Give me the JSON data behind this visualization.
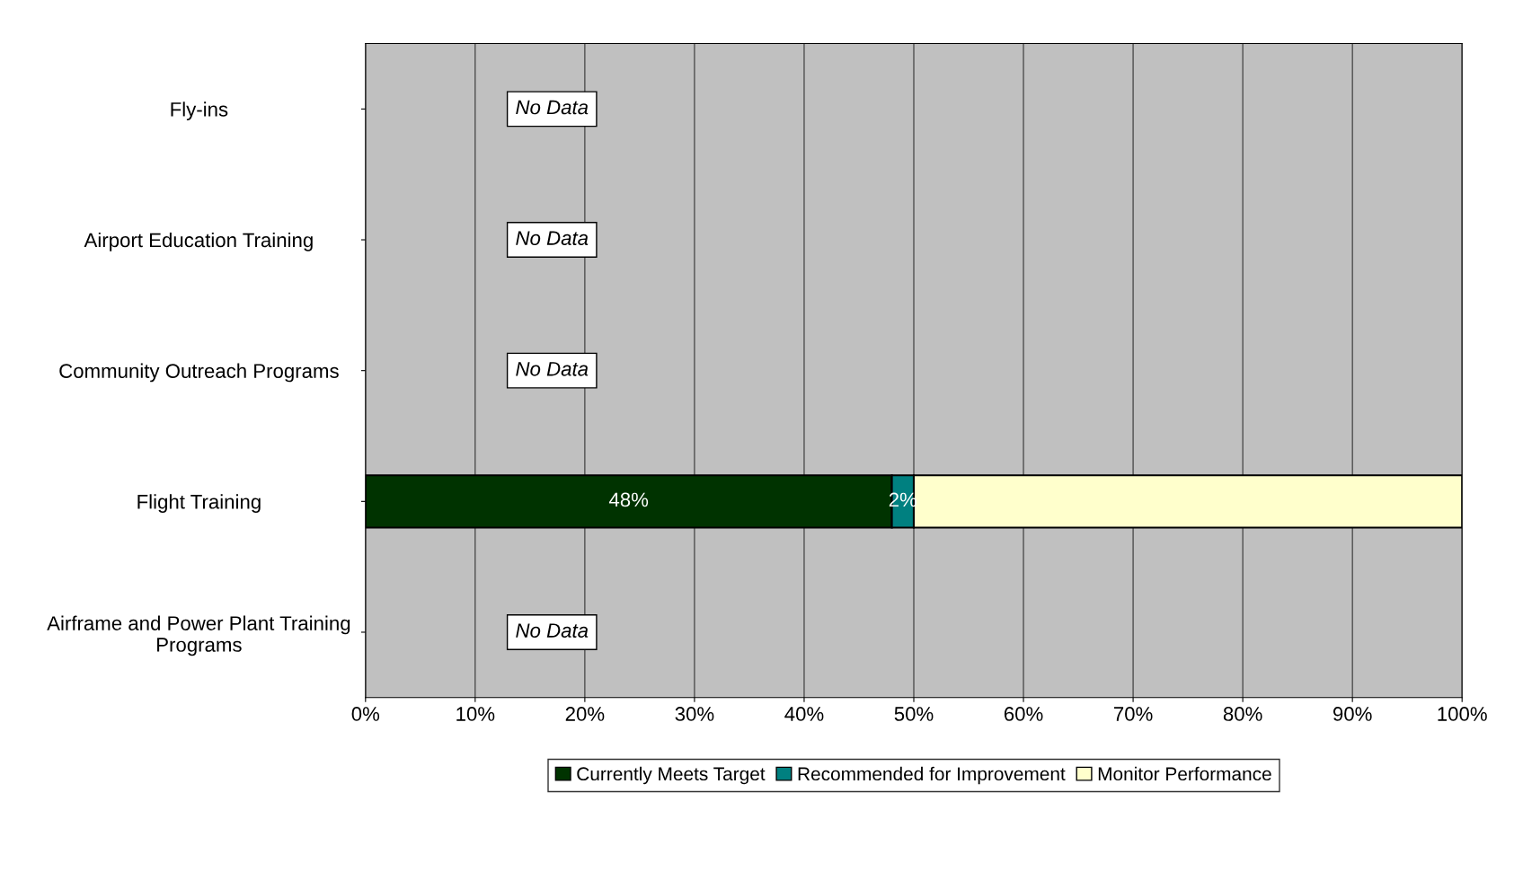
{
  "chart_data": {
    "type": "bar",
    "orientation": "horizontal",
    "stacked": true,
    "categories": [
      "Fly-ins",
      "Airport Education Training",
      "Community Outreach Programs",
      "Flight Training",
      "Airframe and Power Plant Training\nPrograms"
    ],
    "series": [
      {
        "name": "Currently Meets Target",
        "color": "#003300",
        "values": [
          null,
          null,
          null,
          48,
          null
        ],
        "value_labels": [
          null,
          null,
          null,
          "48%",
          null
        ]
      },
      {
        "name": "Recommended for Improvement",
        "color": "#008080",
        "values": [
          null,
          null,
          null,
          2,
          null
        ],
        "value_labels": [
          null,
          null,
          null,
          "2%",
          null
        ]
      },
      {
        "name": "Monitor Performance",
        "color": "#ffffcc",
        "values": [
          null,
          null,
          null,
          50,
          null
        ]
      }
    ],
    "xlim": [
      0,
      100
    ],
    "xticks": [
      {
        "value": 0,
        "label": "0%"
      },
      {
        "value": 10,
        "label": "10%"
      },
      {
        "value": 20,
        "label": "20%"
      },
      {
        "value": 30,
        "label": "30%"
      },
      {
        "value": 40,
        "label": "40%"
      },
      {
        "value": 50,
        "label": "50%"
      },
      {
        "value": 60,
        "label": "60%"
      },
      {
        "value": 70,
        "label": "70%"
      },
      {
        "value": 80,
        "label": "80%"
      },
      {
        "value": 90,
        "label": "90%"
      },
      {
        "value": 100,
        "label": "100%"
      }
    ],
    "grid": "x",
    "legend": "bottom",
    "annotations": [
      "No Data",
      "No Data",
      "No Data",
      "No Data"
    ]
  }
}
